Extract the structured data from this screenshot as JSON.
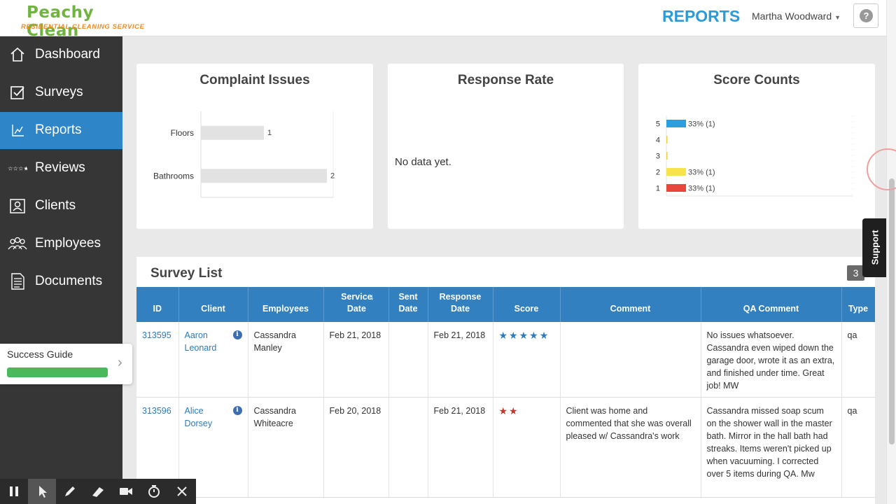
{
  "header": {
    "logo_brand": "Peachy Clean",
    "logo_tagline": "RESIDENTIAL CLEANING SERVICE",
    "page_title": "REPORTS",
    "user_name": "Martha Woodward",
    "help_label": "?"
  },
  "sidebar": {
    "items": [
      {
        "label": "Dashboard",
        "icon": "home-icon"
      },
      {
        "label": "Surveys",
        "icon": "checkbox-icon"
      },
      {
        "label": "Reports",
        "icon": "chart-icon",
        "active": true
      },
      {
        "label": "Reviews",
        "icon": "stars-icon"
      },
      {
        "label": "Clients",
        "icon": "contact-card-icon"
      },
      {
        "label": "Employees",
        "icon": "people-icon"
      },
      {
        "label": "Documents",
        "icon": "document-icon"
      }
    ]
  },
  "cards": {
    "complaint_title": "Complaint Issues",
    "response_title": "Response Rate",
    "response_nodata": "No data yet.",
    "score_title": "Score Counts"
  },
  "chart_data": [
    {
      "type": "bar",
      "orientation": "horizontal",
      "title": "Complaint Issues",
      "categories": [
        "Floors",
        "Bathrooms"
      ],
      "values": [
        1,
        2
      ],
      "xlim": [
        0,
        2.1
      ],
      "bar_color": "#e2e2e2"
    },
    {
      "type": "bar",
      "orientation": "horizontal",
      "title": "Score Counts",
      "categories": [
        "5",
        "4",
        "3",
        "2",
        "1"
      ],
      "values": [
        1,
        0,
        0,
        1,
        1
      ],
      "labels": [
        "33% (1)",
        "",
        "",
        "33% (1)",
        "33% (1)"
      ],
      "colors": [
        "#2b9ee0",
        "#f2cf47",
        "#f2cf47",
        "#f7e34a",
        "#e8453c"
      ],
      "xlim": [
        0,
        9.5
      ]
    }
  ],
  "survey_list": {
    "title": "Survey List",
    "count": "3",
    "columns": [
      "ID",
      "Client",
      "Employees",
      "Service Date",
      "Sent Date",
      "Response Date",
      "Score",
      "Comment",
      "QA Comment",
      "Type"
    ],
    "sort_indicator": "↓",
    "rows": [
      {
        "id": "313595",
        "client": "Aaron Leonard",
        "employees": "Cassandra Manley",
        "service_date": "Feb 21, 2018",
        "sent_date": "",
        "response_date": "Feb 21, 2018",
        "score": 5,
        "score_stars": "★★★★★",
        "comment": "",
        "qa_comment": "No issues whatsoever. Cassandra even wiped down the garage door, wrote it as an extra, and finished under time. Great job! MW",
        "type": "qa"
      },
      {
        "id": "313596",
        "client": "Alice Dorsey",
        "employees": "Cassandra Whiteacre",
        "service_date": "Feb 20, 2018",
        "sent_date": "",
        "response_date": "Feb 21, 2018",
        "score": 2,
        "score_stars": "★★",
        "comment": "Client was home and commented that she was overall pleased w/ Cassandra's work",
        "qa_comment": "Cassandra missed soap scum on the shower wall in the master bath. Mirror in the hall bath had streaks. Items weren't picked up when vacuuming. I corrected over 5 items during QA. Mw",
        "type": "qa"
      }
    ]
  },
  "success_guide": {
    "label": "Success Guide",
    "progress": 1.0,
    "chevron": "›"
  },
  "support_tab": {
    "label": "Support"
  },
  "rec_toolbar": {
    "buttons": [
      "pause-icon",
      "pointer-icon",
      "pen-icon",
      "highlighter-icon",
      "camera-icon",
      "timer-icon",
      "close-icon"
    ]
  },
  "colors": {
    "accent": "#2e86c8",
    "sidebar_bg": "#363636",
    "table_header": "#3380c0",
    "link": "#2a7bbf",
    "star_red": "#c0392b"
  }
}
